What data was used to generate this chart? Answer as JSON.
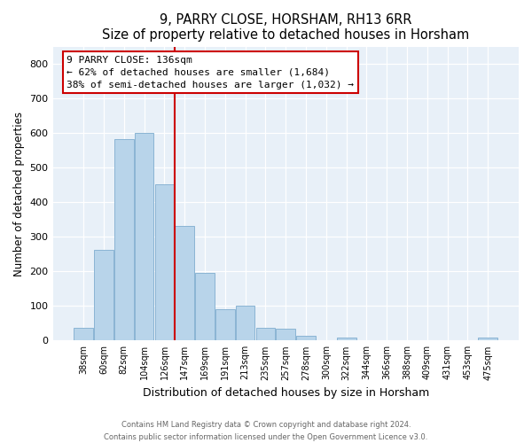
{
  "title": "9, PARRY CLOSE, HORSHAM, RH13 6RR",
  "subtitle": "Size of property relative to detached houses in Horsham",
  "xlabel": "Distribution of detached houses by size in Horsham",
  "ylabel": "Number of detached properties",
  "bar_color": "#b8d4ea",
  "bar_edge_color": "#8ab4d4",
  "categories": [
    "38sqm",
    "60sqm",
    "82sqm",
    "104sqm",
    "126sqm",
    "147sqm",
    "169sqm",
    "191sqm",
    "213sqm",
    "235sqm",
    "257sqm",
    "278sqm",
    "300sqm",
    "322sqm",
    "344sqm",
    "366sqm",
    "388sqm",
    "409sqm",
    "431sqm",
    "453sqm",
    "475sqm"
  ],
  "values": [
    37,
    263,
    583,
    601,
    453,
    331,
    196,
    90,
    100,
    37,
    33,
    14,
    0,
    9,
    0,
    0,
    0,
    0,
    0,
    0,
    9
  ],
  "vline_index": 4.5,
  "vline_color": "#cc0000",
  "annotation_title": "9 PARRY CLOSE: 136sqm",
  "annotation_line1": "← 62% of detached houses are smaller (1,684)",
  "annotation_line2": "38% of semi-detached houses are larger (1,032) →",
  "annotation_box_color": "#ffffff",
  "annotation_box_edge": "#cc0000",
  "ylim": [
    0,
    850
  ],
  "yticks": [
    0,
    100,
    200,
    300,
    400,
    500,
    600,
    700,
    800
  ],
  "footer_line1": "Contains HM Land Registry data © Crown copyright and database right 2024.",
  "footer_line2": "Contains public sector information licensed under the Open Government Licence v3.0.",
  "background_color": "#e8f0f8"
}
